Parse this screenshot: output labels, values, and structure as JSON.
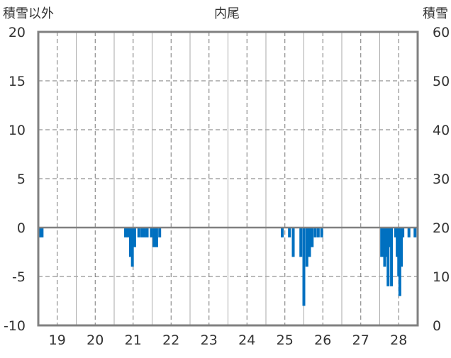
{
  "chart_data": {
    "type": "bar",
    "title": "内尾",
    "left_axis_label": "積雪以外",
    "right_axis_label": "積雪",
    "left_ylim": [
      -10,
      20
    ],
    "left_ticks": [
      "20",
      "15",
      "10",
      "5",
      "0",
      "-5",
      "-10"
    ],
    "right_ylim": [
      0,
      60
    ],
    "right_ticks": [
      "60",
      "50",
      "40",
      "30",
      "20",
      "10",
      "0"
    ],
    "x_range": [
      18.5,
      28.5
    ],
    "x_ticks": [
      "19",
      "20",
      "21",
      "22",
      "23",
      "24",
      "25",
      "26",
      "27",
      "28"
    ],
    "grid": true,
    "bar_color": "#0070c0",
    "series": [
      {
        "values": [
          {
            "x": 18.54,
            "y": -1
          },
          {
            "x": 18.6,
            "y": -1
          },
          {
            "x": 20.8,
            "y": -1
          },
          {
            "x": 20.87,
            "y": -1
          },
          {
            "x": 20.93,
            "y": -3
          },
          {
            "x": 20.98,
            "y": -4
          },
          {
            "x": 21.04,
            "y": -2
          },
          {
            "x": 21.15,
            "y": -1
          },
          {
            "x": 21.23,
            "y": -1
          },
          {
            "x": 21.3,
            "y": -1
          },
          {
            "x": 21.37,
            "y": -1
          },
          {
            "x": 21.48,
            "y": -1
          },
          {
            "x": 21.55,
            "y": -2
          },
          {
            "x": 21.62,
            "y": -2
          },
          {
            "x": 21.7,
            "y": -1
          },
          {
            "x": 24.93,
            "y": -1
          },
          {
            "x": 25.12,
            "y": -1
          },
          {
            "x": 25.22,
            "y": -3
          },
          {
            "x": 25.42,
            "y": -3
          },
          {
            "x": 25.5,
            "y": -8
          },
          {
            "x": 25.58,
            "y": -4
          },
          {
            "x": 25.65,
            "y": -3
          },
          {
            "x": 25.72,
            "y": -2
          },
          {
            "x": 25.8,
            "y": -1
          },
          {
            "x": 25.88,
            "y": -1
          },
          {
            "x": 25.97,
            "y": -1
          },
          {
            "x": 27.55,
            "y": -3
          },
          {
            "x": 27.6,
            "y": -3
          },
          {
            "x": 27.63,
            "y": -4
          },
          {
            "x": 27.68,
            "y": -3
          },
          {
            "x": 27.72,
            "y": -6
          },
          {
            "x": 27.77,
            "y": -2
          },
          {
            "x": 27.81,
            "y": -6
          },
          {
            "x": 27.92,
            "y": -1
          },
          {
            "x": 27.96,
            "y": -3
          },
          {
            "x": 28.0,
            "y": -5
          },
          {
            "x": 28.03,
            "y": -7
          },
          {
            "x": 28.07,
            "y": -4
          },
          {
            "x": 28.11,
            "y": -1
          },
          {
            "x": 28.27,
            "y": -1
          },
          {
            "x": 28.43,
            "y": -1
          }
        ]
      }
    ]
  }
}
